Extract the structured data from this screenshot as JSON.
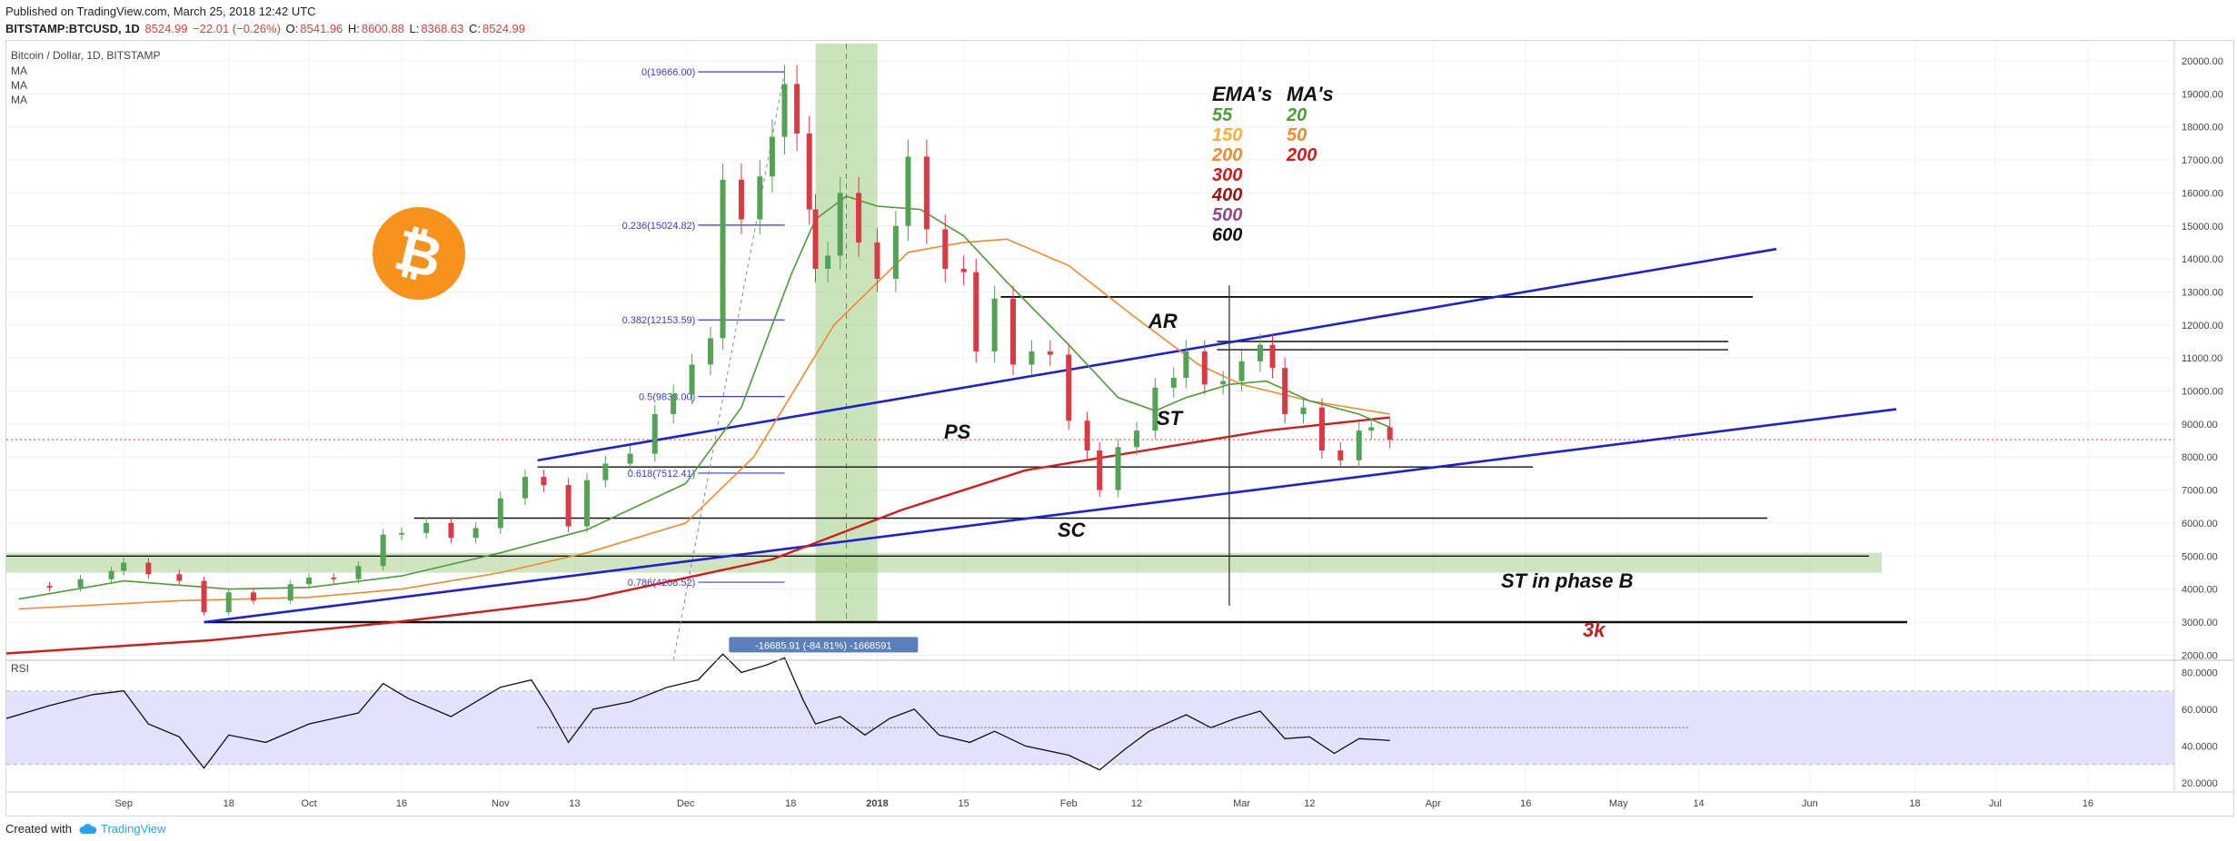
{
  "header": {
    "published": "Published on TradingView.com, March 25, 2018 12:42 UTC",
    "symbol": "BITSTAMP:BTCUSD, 1D",
    "last": "8524.99",
    "change": "−22.01 (−0.26%)",
    "o_label": "O:",
    "o": "8541.96",
    "h_label": "H:",
    "h": "8600.88",
    "l_label": "L:",
    "l": "8368.63",
    "c_label": "C:",
    "c": "8524.99"
  },
  "legend": {
    "title": "Bitcoin / Dollar, 1D, BITSTAMP",
    "ma": [
      "MA",
      "MA",
      "MA"
    ]
  },
  "colors": {
    "up": "#53a255",
    "down": "#d93a43",
    "blue": "#1f1fd6",
    "ema_green": "#4f9a3a",
    "ema_orange": "#ef8a2f",
    "ema_red": "#cf1d1d",
    "rsi_band": "#e3e1fb",
    "fib": "#3b3bd9",
    "highlight": "#a8d08d"
  },
  "chart_data": [
    {
      "type": "candlestick",
      "title": "Bitcoin / Dollar, 1D, BITSTAMP",
      "y_ticks": [
        2000,
        3000,
        4000,
        5000,
        6000,
        7000,
        8000,
        9000,
        10000,
        11000,
        12000,
        13000,
        14000,
        15000,
        16000,
        17000,
        18000,
        19000,
        20000
      ],
      "y_tick_labels": [
        "2000.00",
        "3000.00",
        "4000.00",
        "5000.00",
        "6000.00",
        "7000.00",
        "8000.00",
        "9000.00",
        "10000.00",
        "11000.00",
        "12000.00",
        "13000.00",
        "14000.00",
        "15000.00",
        "16000.00",
        "17000.00",
        "18000.00",
        "19000.00",
        "20000.00"
      ],
      "ylim": [
        2000,
        20500
      ],
      "x_ticks": [
        "Sep",
        "18",
        "Oct",
        "16",
        "Nov",
        "13",
        "Dec",
        "18",
        "2018",
        "15",
        "Feb",
        "12",
        "Mar",
        "12",
        "Apr",
        "16",
        "May",
        "14",
        "Jun",
        "18",
        "Jul",
        "16"
      ],
      "x_tick_dates": [
        "2017-09-01",
        "2017-09-18",
        "2017-10-01",
        "2017-10-16",
        "2017-11-01",
        "2017-11-13",
        "2017-12-01",
        "2017-12-18",
        "2018-01-01",
        "2018-01-15",
        "2018-02-01",
        "2018-02-12",
        "2018-03-01",
        "2018-03-12",
        "2018-04-01",
        "2018-04-16",
        "2018-05-01",
        "2018-05-14",
        "2018-06-01",
        "2018-06-18",
        "2018-07-01",
        "2018-07-16"
      ],
      "xlim": [
        "2017-08-13",
        "2018-07-30"
      ],
      "last_price": 8524.99,
      "close_series": [
        [
          "2017-08-15",
          4100
        ],
        [
          "2017-08-20",
          4050
        ],
        [
          "2017-08-25",
          4300
        ],
        [
          "2017-08-30",
          4550
        ],
        [
          "2017-09-01",
          4800
        ],
        [
          "2017-09-05",
          4450
        ],
        [
          "2017-09-10",
          4250
        ],
        [
          "2017-09-14",
          3300
        ],
        [
          "2017-09-18",
          3900
        ],
        [
          "2017-09-22",
          3650
        ],
        [
          "2017-09-28",
          4150
        ],
        [
          "2017-10-01",
          4350
        ],
        [
          "2017-10-05",
          4300
        ],
        [
          "2017-10-09",
          4700
        ],
        [
          "2017-10-13",
          5650
        ],
        [
          "2017-10-16",
          5700
        ],
        [
          "2017-10-20",
          6000
        ],
        [
          "2017-10-24",
          5550
        ],
        [
          "2017-10-28",
          5850
        ],
        [
          "2017-11-01",
          6750
        ],
        [
          "2017-11-05",
          7400
        ],
        [
          "2017-11-08",
          7150
        ],
        [
          "2017-11-12",
          5900
        ],
        [
          "2017-11-15",
          7300
        ],
        [
          "2017-11-18",
          7800
        ],
        [
          "2017-11-22",
          8100
        ],
        [
          "2017-11-26",
          9300
        ],
        [
          "2017-11-29",
          9900
        ],
        [
          "2017-12-02",
          10800
        ],
        [
          "2017-12-05",
          11600
        ],
        [
          "2017-12-07",
          16400
        ],
        [
          "2017-12-10",
          15200
        ],
        [
          "2017-12-13",
          16500
        ],
        [
          "2017-12-15",
          17700
        ],
        [
          "2017-12-17",
          19300
        ],
        [
          "2017-12-19",
          17800
        ],
        [
          "2017-12-21",
          15500
        ],
        [
          "2017-12-22",
          13700
        ],
        [
          "2017-12-24",
          14100
        ],
        [
          "2017-12-26",
          16000
        ],
        [
          "2017-12-29",
          14500
        ],
        [
          "2018-01-01",
          13400
        ],
        [
          "2018-01-04",
          15000
        ],
        [
          "2018-01-06",
          17100
        ],
        [
          "2018-01-09",
          14900
        ],
        [
          "2018-01-12",
          13700
        ],
        [
          "2018-01-15",
          13600
        ],
        [
          "2018-01-17",
          11200
        ],
        [
          "2018-01-20",
          12800
        ],
        [
          "2018-01-23",
          10800
        ],
        [
          "2018-01-26",
          11200
        ],
        [
          "2018-01-29",
          11100
        ],
        [
          "2018-02-01",
          9100
        ],
        [
          "2018-02-04",
          8200
        ],
        [
          "2018-02-06",
          7000
        ],
        [
          "2018-02-09",
          8300
        ],
        [
          "2018-02-12",
          8800
        ],
        [
          "2018-02-15",
          10100
        ],
        [
          "2018-02-18",
          10400
        ],
        [
          "2018-02-20",
          11200
        ],
        [
          "2018-02-23",
          10200
        ],
        [
          "2018-02-26",
          10300
        ],
        [
          "2018-03-01",
          10900
        ],
        [
          "2018-03-04",
          11400
        ],
        [
          "2018-03-06",
          10700
        ],
        [
          "2018-03-08",
          9300
        ],
        [
          "2018-03-11",
          9500
        ],
        [
          "2018-03-14",
          8200
        ],
        [
          "2018-03-17",
          7900
        ],
        [
          "2018-03-20",
          8800
        ],
        [
          "2018-03-22",
          8900
        ],
        [
          "2018-03-25",
          8525
        ]
      ],
      "ema_55": [
        [
          "2017-08-15",
          3700
        ],
        [
          "2017-09-01",
          4250
        ],
        [
          "2017-09-18",
          4000
        ],
        [
          "2017-10-01",
          4050
        ],
        [
          "2017-10-16",
          4400
        ],
        [
          "2017-11-01",
          5100
        ],
        [
          "2017-11-15",
          5800
        ],
        [
          "2017-12-01",
          7200
        ],
        [
          "2017-12-10",
          9500
        ],
        [
          "2017-12-18",
          13500
        ],
        [
          "2017-12-22",
          15200
        ],
        [
          "2017-12-27",
          15900
        ],
        [
          "2018-01-01",
          15600
        ],
        [
          "2018-01-08",
          15500
        ],
        [
          "2018-01-15",
          14700
        ],
        [
          "2018-01-22",
          13300
        ],
        [
          "2018-02-01",
          11400
        ],
        [
          "2018-02-09",
          9800
        ],
        [
          "2018-02-15",
          9400
        ],
        [
          "2018-02-20",
          9800
        ],
        [
          "2018-02-27",
          10200
        ],
        [
          "2018-03-05",
          10300
        ],
        [
          "2018-03-12",
          9700
        ],
        [
          "2018-03-20",
          9300
        ],
        [
          "2018-03-25",
          8900
        ]
      ],
      "ema_200": [
        [
          "2017-08-15",
          3400
        ],
        [
          "2017-09-10",
          3650
        ],
        [
          "2017-10-01",
          3750
        ],
        [
          "2017-10-16",
          4000
        ],
        [
          "2017-11-01",
          4500
        ],
        [
          "2017-11-15",
          5100
        ],
        [
          "2017-12-01",
          6000
        ],
        [
          "2017-12-12",
          8000
        ],
        [
          "2017-12-25",
          12000
        ],
        [
          "2018-01-06",
          14200
        ],
        [
          "2018-01-15",
          14500
        ],
        [
          "2018-01-22",
          14600
        ],
        [
          "2018-02-01",
          13800
        ],
        [
          "2018-02-12",
          12200
        ],
        [
          "2018-02-22",
          10800
        ],
        [
          "2018-03-01",
          10200
        ],
        [
          "2018-03-12",
          9700
        ],
        [
          "2018-03-25",
          9300
        ]
      ],
      "ema_red": [
        [
          "2017-08-13",
          2050
        ],
        [
          "2017-09-15",
          2450
        ],
        [
          "2017-10-15",
          3000
        ],
        [
          "2017-11-15",
          3700
        ],
        [
          "2017-12-15",
          4900
        ],
        [
          "2018-01-05",
          6400
        ],
        [
          "2018-01-25",
          7600
        ],
        [
          "2018-02-15",
          8250
        ],
        [
          "2018-03-05",
          8800
        ],
        [
          "2018-03-25",
          9200
        ]
      ],
      "annotations": {
        "fib_levels": [
          {
            "label": "0(19666.00)",
            "price": 19666.0
          },
          {
            "label": "0.236(15024.82)",
            "price": 15024.82
          },
          {
            "label": "0.382(12153.59)",
            "price": 12153.59
          },
          {
            "label": "0.5(9833.00)",
            "price": 9833.0
          },
          {
            "label": "0.618(7512.41)",
            "price": 7512.41
          },
          {
            "label": "0.786(4208.52)",
            "price": 4208.52
          }
        ],
        "measure_label": "-16685.91 (-84.81%) -1668591",
        "text_labels": {
          "ar": "AR",
          "ps": "PS",
          "st": "ST",
          "sc": "SC",
          "st_phase_b": "ST in phase B",
          "three_k": "3k"
        },
        "ema_legend": {
          "ema_title": "EMA's",
          "ma_title": "MA's",
          "ema": [
            {
              "label": "55",
              "color": "#4f9a3a"
            },
            {
              "label": "150",
              "color": "#f2b23a"
            },
            {
              "label": "200",
              "color": "#ef8a2f"
            },
            {
              "label": "300",
              "color": "#cf1d1d"
            },
            {
              "label": "400",
              "color": "#9b1414"
            },
            {
              "label": "500",
              "color": "#8b4a8b"
            },
            {
              "label": "600",
              "color": "#111111"
            }
          ],
          "ma": [
            {
              "label": "20",
              "color": "#4f9a3a"
            },
            {
              "label": "50",
              "color": "#ef8a2f"
            },
            {
              "label": "200",
              "color": "#cf1d1d"
            }
          ]
        },
        "horizontal_levels": [
          12850,
          11500,
          11250,
          7700,
          6150,
          5000,
          3000
        ],
        "green_zone": [
          4500,
          5100
        ],
        "vertical_marker_date": "2018-02-27"
      }
    },
    {
      "type": "line",
      "title": "RSI",
      "y_ticks": [
        20,
        40,
        60,
        80
      ],
      "y_tick_labels": [
        "20.0000",
        "40.0000",
        "60.0000",
        "80.0000"
      ],
      "ylim": [
        15,
        100
      ],
      "band": [
        30,
        70
      ],
      "dotted_level": 50,
      "series": [
        {
          "values": [
            [
              "2017-08-13",
              55
            ],
            [
              "2017-08-20",
              62
            ],
            [
              "2017-08-27",
              68
            ],
            [
              "2017-09-01",
              70
            ],
            [
              "2017-09-05",
              52
            ],
            [
              "2017-09-10",
              45
            ],
            [
              "2017-09-14",
              28
            ],
            [
              "2017-09-18",
              46
            ],
            [
              "2017-09-24",
              42
            ],
            [
              "2017-10-01",
              52
            ],
            [
              "2017-10-09",
              58
            ],
            [
              "2017-10-13",
              74
            ],
            [
              "2017-10-17",
              66
            ],
            [
              "2017-10-24",
              56
            ],
            [
              "2017-11-01",
              72
            ],
            [
              "2017-11-06",
              76
            ],
            [
              "2017-11-09",
              60
            ],
            [
              "2017-11-12",
              42
            ],
            [
              "2017-11-16",
              60
            ],
            [
              "2017-11-22",
              64
            ],
            [
              "2017-11-28",
              72
            ],
            [
              "2017-12-03",
              76
            ],
            [
              "2017-12-07",
              90
            ],
            [
              "2017-12-10",
              80
            ],
            [
              "2017-12-14",
              84
            ],
            [
              "2017-12-17",
              88
            ],
            [
              "2017-12-20",
              65
            ],
            [
              "2017-12-22",
              52
            ],
            [
              "2017-12-26",
              56
            ],
            [
              "2017-12-30",
              46
            ],
            [
              "2018-01-03",
              55
            ],
            [
              "2018-01-07",
              60
            ],
            [
              "2018-01-11",
              46
            ],
            [
              "2018-01-16",
              42
            ],
            [
              "2018-01-20",
              48
            ],
            [
              "2018-01-25",
              40
            ],
            [
              "2018-02-01",
              35
            ],
            [
              "2018-02-06",
              27
            ],
            [
              "2018-02-10",
              38
            ],
            [
              "2018-02-14",
              48
            ],
            [
              "2018-02-20",
              57
            ],
            [
              "2018-02-24",
              50
            ],
            [
              "2018-02-28",
              55
            ],
            [
              "2018-03-04",
              59
            ],
            [
              "2018-03-08",
              44
            ],
            [
              "2018-03-12",
              45
            ],
            [
              "2018-03-16",
              36
            ],
            [
              "2018-03-20",
              44
            ],
            [
              "2018-03-25",
              43
            ]
          ]
        }
      ]
    }
  ],
  "footer": {
    "created_with": "Created with",
    "brand": "TradingView"
  }
}
